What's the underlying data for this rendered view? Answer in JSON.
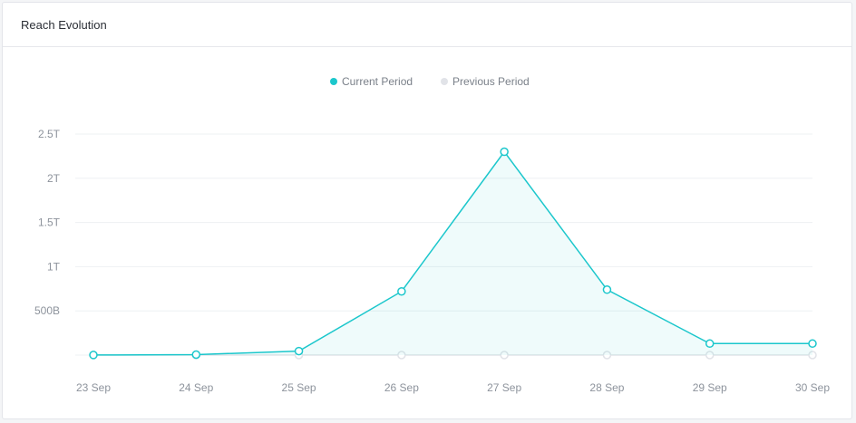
{
  "card": {
    "title": "Reach Evolution"
  },
  "colors": {
    "current": "#1cc7cc",
    "previous": "#e1e3e8",
    "grid": "#eef0f3",
    "axis_text": "#8d939c",
    "legend_text": "#7a8089"
  },
  "chart_data": {
    "type": "line",
    "title": "",
    "xlabel": "",
    "ylabel": "",
    "categories": [
      "23 Sep",
      "24 Sep",
      "25 Sep",
      "26 Sep",
      "27 Sep",
      "28 Sep",
      "29 Sep",
      "30 Sep"
    ],
    "y_ticks": [
      {
        "value": 500000000000,
        "label": "500B"
      },
      {
        "value": 1000000000000,
        "label": "1T"
      },
      {
        "value": 1500000000000,
        "label": "1.5T"
      },
      {
        "value": 2000000000000,
        "label": "2T"
      },
      {
        "value": 2500000000000,
        "label": "2.5T"
      }
    ],
    "ylim": [
      0,
      2500000000000
    ],
    "grid": true,
    "legend_position": "top-center",
    "series": [
      {
        "name": "Current Period",
        "color": "#1cc7cc",
        "area": true,
        "values": [
          1000000000,
          5000000000,
          45000000000,
          720000000000,
          2300000000000,
          740000000000,
          130000000000,
          130000000000
        ]
      },
      {
        "name": "Previous Period",
        "color": "#e1e3e8",
        "area": false,
        "values": [
          0,
          0,
          0,
          0,
          0,
          0,
          0,
          0
        ]
      }
    ]
  }
}
